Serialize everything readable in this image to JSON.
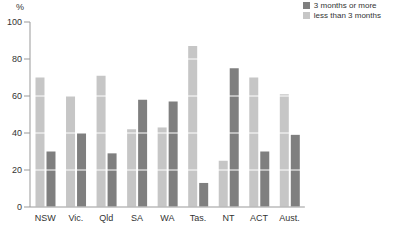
{
  "chart_data": {
    "type": "bar",
    "y_label": "%",
    "categories": [
      "NSW",
      "Vic.",
      "Qld",
      "SA",
      "WA",
      "Tas.",
      "NT",
      "ACT",
      "Aust."
    ],
    "series": [
      {
        "name": "less than 3 months",
        "color": "#c6c6c6",
        "values": [
          70,
          60,
          71,
          42,
          43,
          87,
          25,
          70,
          61
        ]
      },
      {
        "name": "3 months or more",
        "color": "#7f7f7f",
        "values": [
          30,
          40,
          29,
          58,
          57,
          13,
          75,
          30,
          39
        ]
      }
    ],
    "ylim": [
      0,
      100
    ],
    "yticks": [
      0,
      20,
      40,
      60,
      80,
      100
    ],
    "grid": true,
    "legend": "upper right"
  }
}
